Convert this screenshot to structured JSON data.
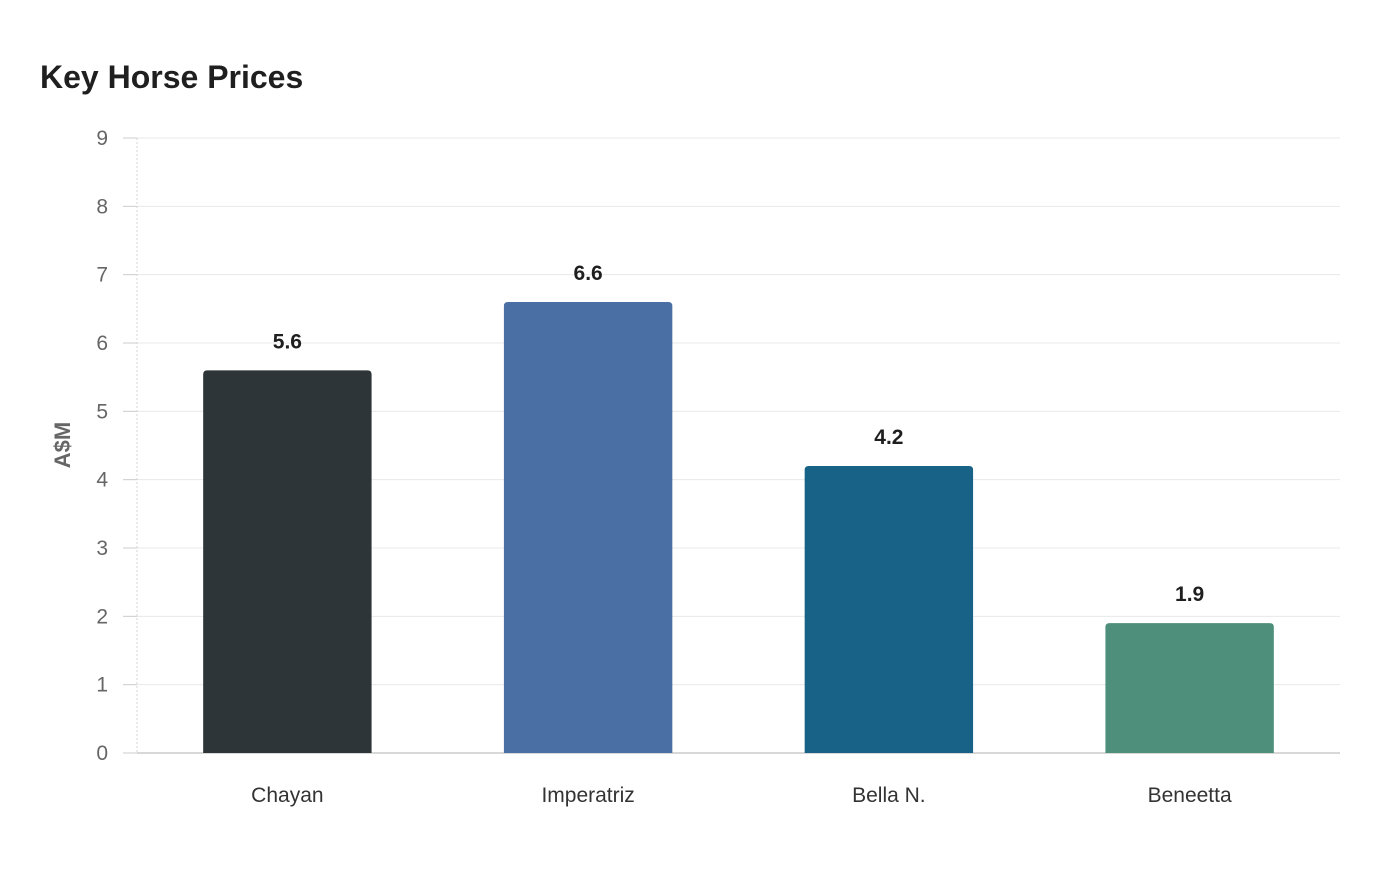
{
  "chart_data": {
    "type": "bar",
    "title": "Key Horse Prices",
    "xlabel": "",
    "ylabel": "A$M",
    "ylim": [
      0,
      9
    ],
    "yticks": [
      0,
      1,
      2,
      3,
      4,
      5,
      6,
      7,
      8,
      9
    ],
    "grid": true,
    "legend": "none",
    "categories": [
      "Chayan",
      "Imperatriz",
      "Bella N.",
      "Beneetta"
    ],
    "values": [
      5.6,
      6.6,
      4.2,
      1.9
    ],
    "value_labels": [
      "5.6",
      "6.6",
      "4.2",
      "1.9"
    ],
    "colors": [
      "#2d3538",
      "#4a6fa4",
      "#186287",
      "#4e8f7c"
    ]
  }
}
